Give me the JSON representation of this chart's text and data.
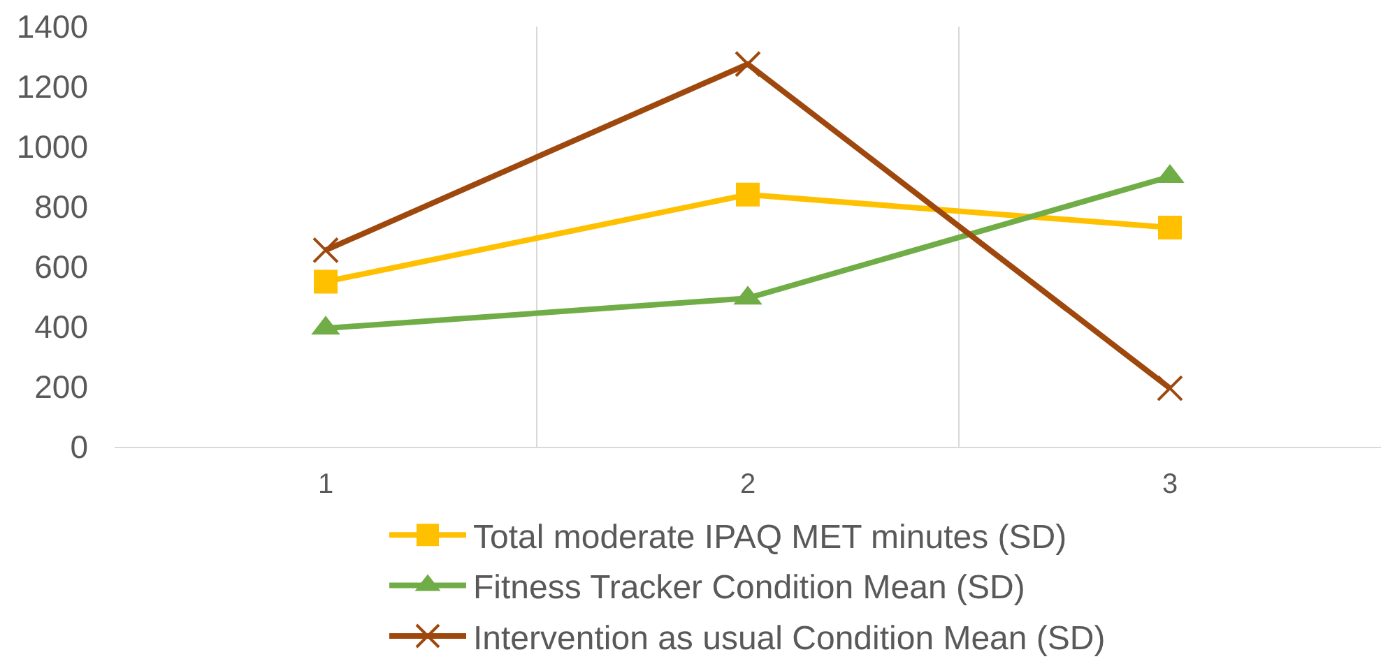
{
  "chart_data": {
    "type": "line",
    "categories": [
      "1",
      "2",
      "3"
    ],
    "series": [
      {
        "name": "Total moderate IPAQ MET minutes (SD)",
        "color": "#ffc000",
        "marker": "square",
        "values": [
          550,
          840,
          730
        ]
      },
      {
        "name": "Fitness Tracker Condition Mean (SD)",
        "color": "#70ad47",
        "marker": "triangle",
        "values": [
          395,
          495,
          900
        ]
      },
      {
        "name": "Intervention as usual Condition Mean (SD)",
        "color": "#9e480e",
        "marker": "cross",
        "values": [
          655,
          1275,
          195
        ]
      }
    ],
    "ylim": [
      0,
      1400
    ],
    "yticks": [
      0,
      200,
      400,
      600,
      800,
      1000,
      1200,
      1400
    ],
    "grid": "x",
    "legend": "bottom",
    "line_style": "solid"
  }
}
